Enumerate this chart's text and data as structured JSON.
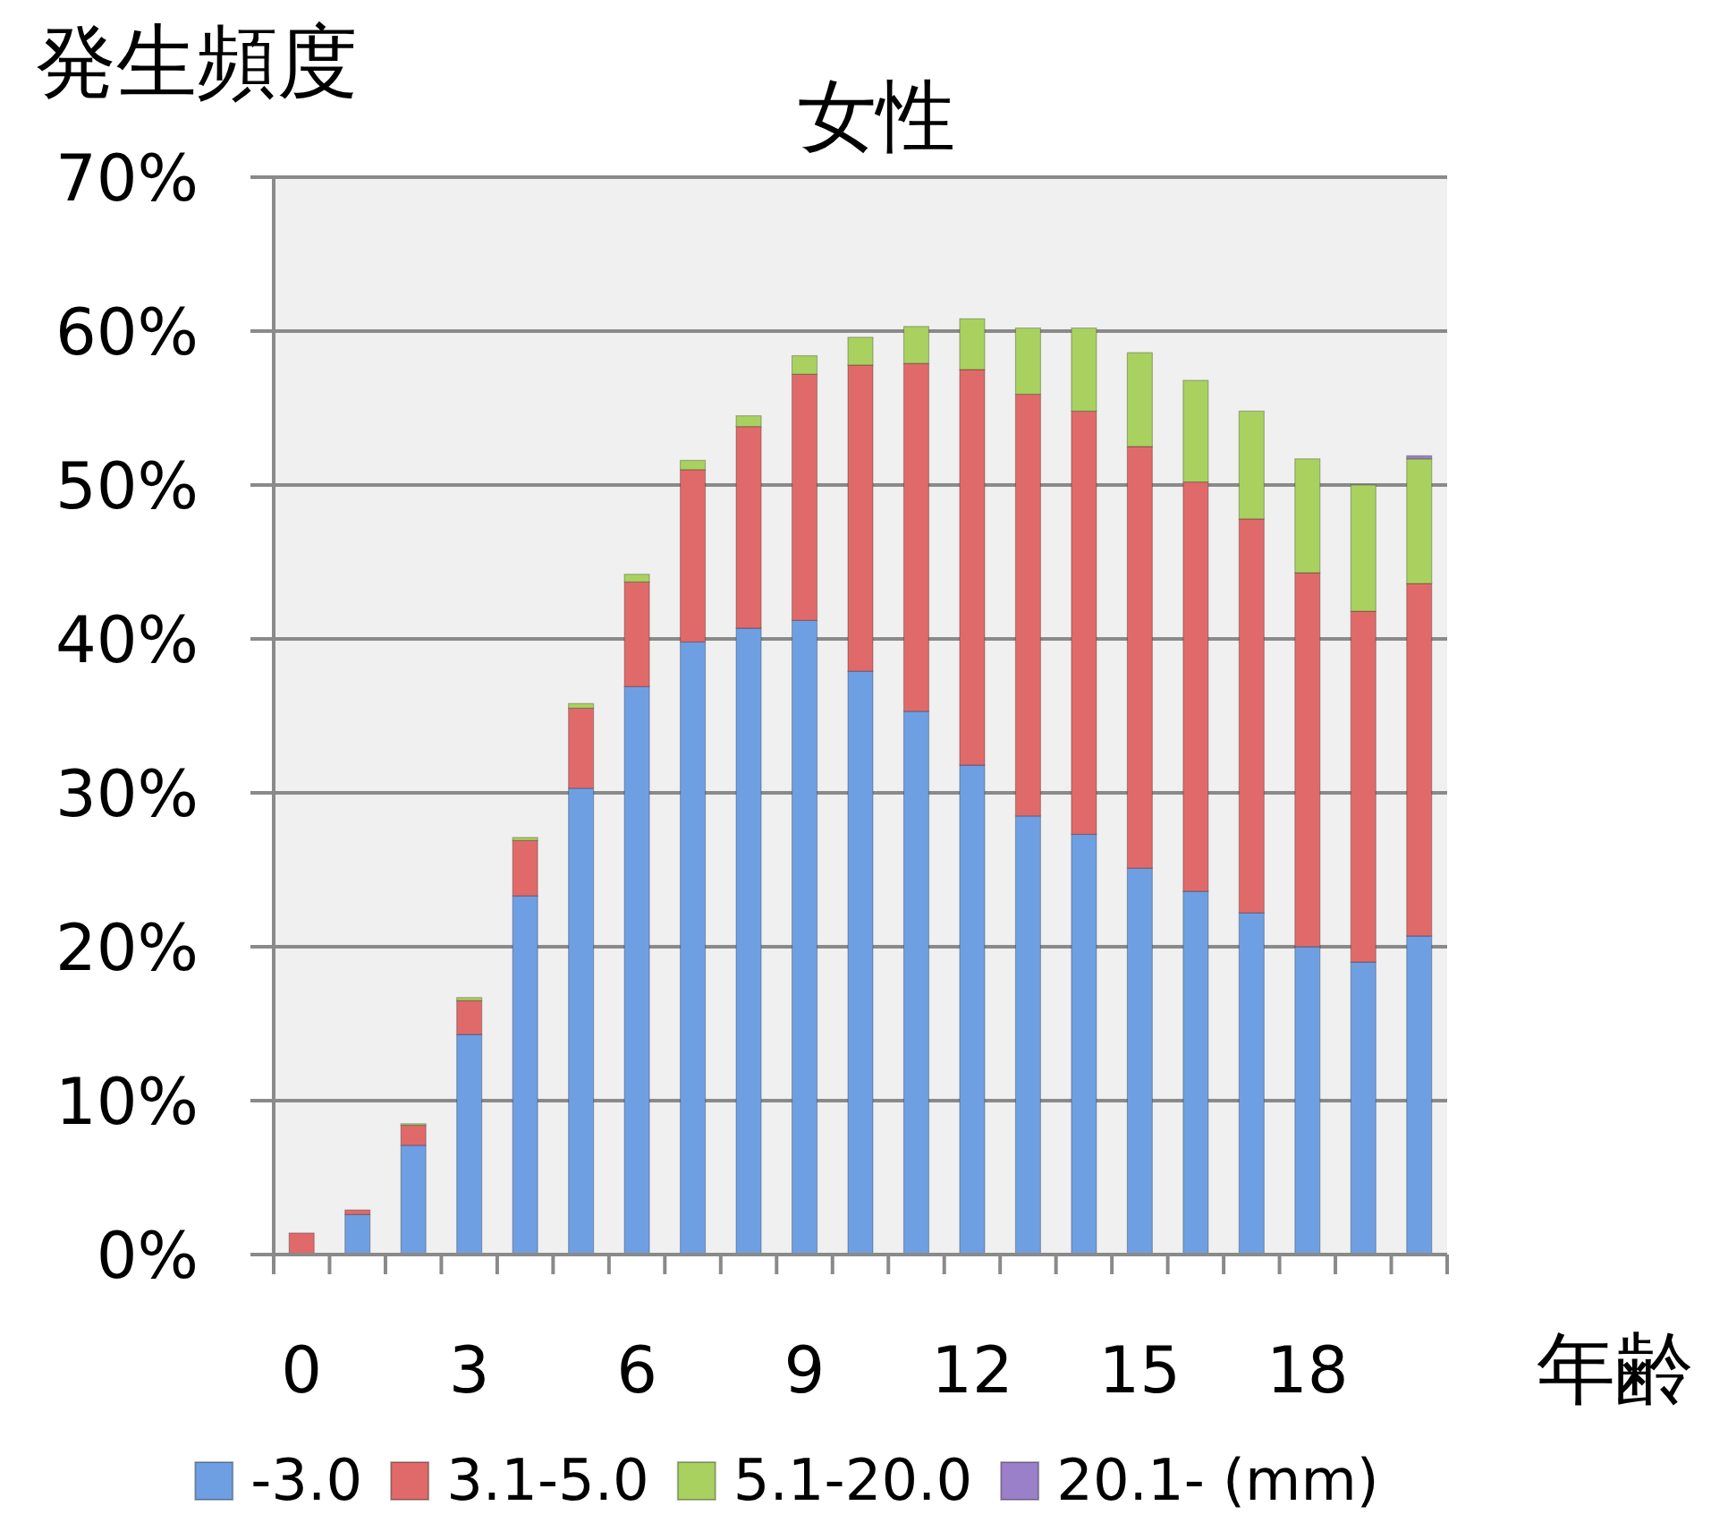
{
  "chart_data": {
    "type": "bar",
    "title": "女性",
    "ylabel": "発生頻度",
    "xlabel": "年齢",
    "stacked": true,
    "grid": "y",
    "legend": "bottom",
    "categories": [
      "0",
      null,
      null,
      "3",
      null,
      null,
      "6",
      null,
      null,
      "9",
      null,
      null,
      "12",
      null,
      null,
      "15",
      null,
      null,
      "18",
      null,
      null
    ],
    "ylim": [
      0,
      70
    ],
    "yticks": [
      {
        "value": 0,
        "label": "0%"
      },
      {
        "value": 10,
        "label": "10%"
      },
      {
        "value": 20,
        "label": "20%"
      },
      {
        "value": 30,
        "label": "30%"
      },
      {
        "value": 40,
        "label": "40%"
      },
      {
        "value": 50,
        "label": "50%"
      },
      {
        "value": 60,
        "label": "60%"
      },
      {
        "value": 70,
        "label": "70%"
      }
    ],
    "series": [
      {
        "name": "-3.0",
        "color": "#6f9fe3",
        "values": [
          null,
          2.6,
          7.1,
          14.3,
          23.3,
          30.3,
          36.9,
          39.8,
          40.7,
          41.2,
          37.9,
          35.3,
          31.8,
          28.5,
          27.3,
          25.1,
          23.6,
          22.2,
          20.0,
          19.0,
          20.7
        ]
      },
      {
        "name": "3.1-5.0",
        "color": "#e06a6a",
        "values": [
          1.4,
          0.3,
          1.3,
          2.2,
          3.6,
          5.2,
          6.8,
          11.2,
          13.1,
          16.0,
          19.9,
          22.6,
          25.7,
          27.4,
          27.5,
          27.4,
          26.6,
          25.6,
          24.3,
          22.8,
          22.9
        ]
      },
      {
        "name": "5.1-20.0",
        "color": "#a9d160",
        "values": [
          null,
          null,
          0.1,
          0.2,
          0.2,
          0.3,
          0.5,
          0.6,
          0.7,
          1.2,
          1.8,
          2.4,
          3.3,
          4.3,
          5.4,
          6.1,
          6.6,
          7.0,
          7.4,
          8.2,
          8.1
        ]
      },
      {
        "name": "20.1- (mm)",
        "color": "#9a80c8",
        "values": [
          null,
          null,
          null,
          null,
          null,
          null,
          null,
          null,
          null,
          null,
          null,
          null,
          null,
          null,
          null,
          null,
          null,
          null,
          null,
          null,
          0.2
        ]
      }
    ]
  }
}
